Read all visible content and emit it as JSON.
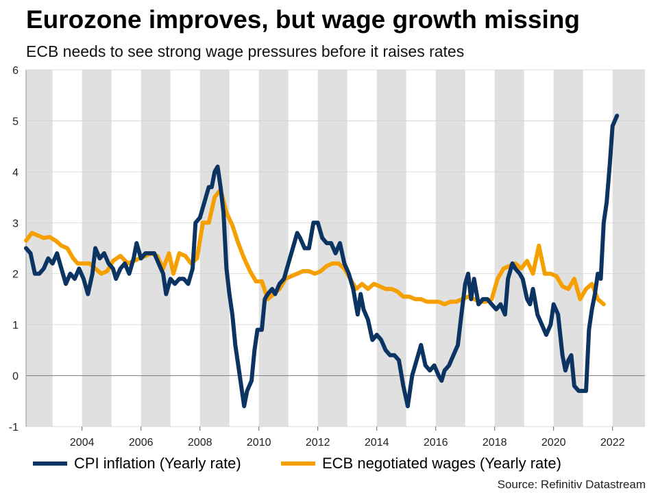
{
  "header": {
    "title": "Eurozone improves, but wage growth missing",
    "subtitle": "ECB needs to see strong wage pressures before it raises rates"
  },
  "source": "Source: Refinitiv Datastream",
  "colors": {
    "cpi": "#0b3463",
    "wages": "#f5a000",
    "band": "#e0e0e0",
    "grid": "#d0d0d0",
    "zero_line": "#888888"
  },
  "chart_data": {
    "type": "line",
    "title": "Eurozone improves, but wage growth missing",
    "subtitle": "ECB needs to see strong wage pressures before it raises rates",
    "xlabel": "",
    "ylabel": "",
    "xlim": [
      2002.1,
      2023.1
    ],
    "ylim": [
      -1,
      6
    ],
    "x_ticks": [
      2004,
      2006,
      2008,
      2010,
      2012,
      2014,
      2016,
      2018,
      2020,
      2022
    ],
    "y_ticks": [
      -1,
      0,
      1,
      2,
      3,
      4,
      5,
      6
    ],
    "shaded_years": [
      [
        2002.1,
        2003.0
      ],
      [
        2004.0,
        2005.0
      ],
      [
        2006.0,
        2007.0
      ],
      [
        2008.0,
        2009.0
      ],
      [
        2010.0,
        2011.0
      ],
      [
        2012.0,
        2013.0
      ],
      [
        2014.0,
        2015.0
      ],
      [
        2016.0,
        2017.0
      ],
      [
        2018.0,
        2019.0
      ],
      [
        2020.0,
        2021.0
      ],
      [
        2022.0,
        2023.1
      ]
    ],
    "legend_position": "bottom",
    "series": [
      {
        "name": "CPI inflation (Yearly rate)",
        "color": "#0b3463",
        "points": [
          [
            2002.1,
            2.5
          ],
          [
            2002.25,
            2.4
          ],
          [
            2002.4,
            2.0
          ],
          [
            2002.55,
            2.0
          ],
          [
            2002.7,
            2.1
          ],
          [
            2002.85,
            2.3
          ],
          [
            2003.0,
            2.2
          ],
          [
            2003.15,
            2.4
          ],
          [
            2003.3,
            2.1
          ],
          [
            2003.45,
            1.8
          ],
          [
            2003.6,
            2.0
          ],
          [
            2003.75,
            1.9
          ],
          [
            2003.9,
            2.1
          ],
          [
            2004.05,
            1.9
          ],
          [
            2004.2,
            1.6
          ],
          [
            2004.35,
            2.0
          ],
          [
            2004.45,
            2.5
          ],
          [
            2004.6,
            2.3
          ],
          [
            2004.75,
            2.4
          ],
          [
            2004.9,
            2.2
          ],
          [
            2005.05,
            2.1
          ],
          [
            2005.15,
            1.9
          ],
          [
            2005.3,
            2.1
          ],
          [
            2005.45,
            2.2
          ],
          [
            2005.6,
            2.0
          ],
          [
            2005.75,
            2.3
          ],
          [
            2005.85,
            2.6
          ],
          [
            2006.0,
            2.3
          ],
          [
            2006.15,
            2.4
          ],
          [
            2006.3,
            2.4
          ],
          [
            2006.45,
            2.4
          ],
          [
            2006.6,
            2.2
          ],
          [
            2006.75,
            2.0
          ],
          [
            2006.85,
            1.6
          ],
          [
            2007.0,
            1.9
          ],
          [
            2007.15,
            1.8
          ],
          [
            2007.3,
            1.9
          ],
          [
            2007.45,
            1.9
          ],
          [
            2007.6,
            1.8
          ],
          [
            2007.75,
            2.1
          ],
          [
            2007.85,
            3.0
          ],
          [
            2008.0,
            3.1
          ],
          [
            2008.15,
            3.4
          ],
          [
            2008.3,
            3.7
          ],
          [
            2008.4,
            3.7
          ],
          [
            2008.5,
            4.0
          ],
          [
            2008.6,
            4.1
          ],
          [
            2008.7,
            3.7
          ],
          [
            2008.8,
            3.2
          ],
          [
            2008.9,
            2.1
          ],
          [
            2009.0,
            1.6
          ],
          [
            2009.1,
            1.2
          ],
          [
            2009.2,
            0.6
          ],
          [
            2009.35,
            0.0
          ],
          [
            2009.5,
            -0.6
          ],
          [
            2009.6,
            -0.3
          ],
          [
            2009.75,
            -0.1
          ],
          [
            2009.85,
            0.5
          ],
          [
            2009.95,
            0.9
          ],
          [
            2010.1,
            0.9
          ],
          [
            2010.2,
            1.5
          ],
          [
            2010.3,
            1.6
          ],
          [
            2010.45,
            1.7
          ],
          [
            2010.55,
            1.6
          ],
          [
            2010.7,
            1.8
          ],
          [
            2010.85,
            1.9
          ],
          [
            2011.0,
            2.2
          ],
          [
            2011.15,
            2.5
          ],
          [
            2011.3,
            2.8
          ],
          [
            2011.4,
            2.7
          ],
          [
            2011.55,
            2.5
          ],
          [
            2011.7,
            2.5
          ],
          [
            2011.85,
            3.0
          ],
          [
            2012.0,
            3.0
          ],
          [
            2012.15,
            2.7
          ],
          [
            2012.3,
            2.6
          ],
          [
            2012.45,
            2.6
          ],
          [
            2012.6,
            2.4
          ],
          [
            2012.75,
            2.6
          ],
          [
            2012.9,
            2.2
          ],
          [
            2013.05,
            2.0
          ],
          [
            2013.2,
            1.7
          ],
          [
            2013.35,
            1.2
          ],
          [
            2013.45,
            1.6
          ],
          [
            2013.55,
            1.3
          ],
          [
            2013.7,
            1.1
          ],
          [
            2013.85,
            0.7
          ],
          [
            2014.0,
            0.8
          ],
          [
            2014.15,
            0.7
          ],
          [
            2014.3,
            0.5
          ],
          [
            2014.45,
            0.4
          ],
          [
            2014.6,
            0.4
          ],
          [
            2014.75,
            0.3
          ],
          [
            2014.9,
            -0.2
          ],
          [
            2015.05,
            -0.6
          ],
          [
            2015.2,
            0.0
          ],
          [
            2015.35,
            0.3
          ],
          [
            2015.5,
            0.6
          ],
          [
            2015.65,
            0.2
          ],
          [
            2015.8,
            0.1
          ],
          [
            2015.95,
            0.2
          ],
          [
            2016.1,
            0.0
          ],
          [
            2016.2,
            -0.1
          ],
          [
            2016.3,
            0.1
          ],
          [
            2016.45,
            0.2
          ],
          [
            2016.6,
            0.4
          ],
          [
            2016.75,
            0.6
          ],
          [
            2016.85,
            1.1
          ],
          [
            2017.0,
            1.8
          ],
          [
            2017.1,
            2.0
          ],
          [
            2017.2,
            1.5
          ],
          [
            2017.3,
            1.9
          ],
          [
            2017.45,
            1.4
          ],
          [
            2017.6,
            1.5
          ],
          [
            2017.75,
            1.5
          ],
          [
            2017.9,
            1.4
          ],
          [
            2018.05,
            1.3
          ],
          [
            2018.2,
            1.4
          ],
          [
            2018.35,
            1.2
          ],
          [
            2018.45,
            1.9
          ],
          [
            2018.6,
            2.2
          ],
          [
            2018.7,
            2.1
          ],
          [
            2018.85,
            2.0
          ],
          [
            2018.95,
            1.9
          ],
          [
            2019.1,
            1.5
          ],
          [
            2019.2,
            1.4
          ],
          [
            2019.3,
            1.7
          ],
          [
            2019.45,
            1.2
          ],
          [
            2019.6,
            1.0
          ],
          [
            2019.75,
            0.8
          ],
          [
            2019.9,
            1.0
          ],
          [
            2020.0,
            1.4
          ],
          [
            2020.15,
            1.2
          ],
          [
            2020.3,
            0.4
          ],
          [
            2020.4,
            0.1
          ],
          [
            2020.5,
            0.3
          ],
          [
            2020.6,
            0.4
          ],
          [
            2020.7,
            -0.2
          ],
          [
            2020.85,
            -0.3
          ],
          [
            2021.0,
            -0.3
          ],
          [
            2021.1,
            -0.3
          ],
          [
            2021.2,
            0.9
          ],
          [
            2021.3,
            1.3
          ],
          [
            2021.4,
            1.6
          ],
          [
            2021.5,
            2.0
          ],
          [
            2021.6,
            1.9
          ],
          [
            2021.7,
            3.0
          ],
          [
            2021.8,
            3.4
          ],
          [
            2021.9,
            4.1
          ],
          [
            2022.0,
            4.9
          ],
          [
            2022.15,
            5.1
          ]
        ]
      },
      {
        "name": "ECB negotiated wages (Yearly rate)",
        "color": "#f5a000",
        "points": [
          [
            2002.1,
            2.65
          ],
          [
            2002.3,
            2.8
          ],
          [
            2002.5,
            2.75
          ],
          [
            2002.7,
            2.7
          ],
          [
            2002.9,
            2.72
          ],
          [
            2003.1,
            2.65
          ],
          [
            2003.3,
            2.55
          ],
          [
            2003.5,
            2.5
          ],
          [
            2003.7,
            2.3
          ],
          [
            2003.85,
            2.2
          ],
          [
            2004.05,
            2.2
          ],
          [
            2004.25,
            2.2
          ],
          [
            2004.45,
            2.1
          ],
          [
            2004.65,
            2.0
          ],
          [
            2004.85,
            2.05
          ],
          [
            2005.05,
            2.25
          ],
          [
            2005.3,
            2.35
          ],
          [
            2005.55,
            2.2
          ],
          [
            2005.75,
            2.25
          ],
          [
            2005.95,
            2.3
          ],
          [
            2006.15,
            2.35
          ],
          [
            2006.35,
            2.4
          ],
          [
            2006.55,
            2.35
          ],
          [
            2006.75,
            2.1
          ],
          [
            2006.95,
            2.4
          ],
          [
            2007.1,
            2.0
          ],
          [
            2007.3,
            2.4
          ],
          [
            2007.5,
            2.35
          ],
          [
            2007.7,
            2.2
          ],
          [
            2007.9,
            2.3
          ],
          [
            2008.1,
            3.0
          ],
          [
            2008.3,
            3.0
          ],
          [
            2008.5,
            3.5
          ],
          [
            2008.7,
            3.65
          ],
          [
            2008.9,
            3.2
          ],
          [
            2009.1,
            2.95
          ],
          [
            2009.3,
            2.6
          ],
          [
            2009.5,
            2.3
          ],
          [
            2009.7,
            2.05
          ],
          [
            2009.9,
            1.85
          ],
          [
            2010.1,
            1.85
          ],
          [
            2010.3,
            1.5
          ],
          [
            2010.5,
            1.6
          ],
          [
            2010.7,
            1.7
          ],
          [
            2010.9,
            1.9
          ],
          [
            2011.1,
            1.95
          ],
          [
            2011.3,
            2.0
          ],
          [
            2011.5,
            2.05
          ],
          [
            2011.7,
            2.05
          ],
          [
            2011.9,
            2.0
          ],
          [
            2012.1,
            2.05
          ],
          [
            2012.3,
            2.15
          ],
          [
            2012.5,
            2.2
          ],
          [
            2012.7,
            2.2
          ],
          [
            2012.9,
            2.1
          ],
          [
            2013.1,
            1.9
          ],
          [
            2013.3,
            1.7
          ],
          [
            2013.5,
            1.8
          ],
          [
            2013.7,
            1.7
          ],
          [
            2013.9,
            1.8
          ],
          [
            2014.1,
            1.75
          ],
          [
            2014.3,
            1.7
          ],
          [
            2014.5,
            1.7
          ],
          [
            2014.7,
            1.65
          ],
          [
            2014.9,
            1.55
          ],
          [
            2015.1,
            1.55
          ],
          [
            2015.3,
            1.5
          ],
          [
            2015.5,
            1.5
          ],
          [
            2015.7,
            1.45
          ],
          [
            2015.9,
            1.45
          ],
          [
            2016.1,
            1.45
          ],
          [
            2016.3,
            1.4
          ],
          [
            2016.5,
            1.45
          ],
          [
            2016.7,
            1.45
          ],
          [
            2016.9,
            1.5
          ],
          [
            2017.1,
            1.55
          ],
          [
            2017.3,
            1.5
          ],
          [
            2017.5,
            1.45
          ],
          [
            2017.7,
            1.45
          ],
          [
            2017.9,
            1.5
          ],
          [
            2018.1,
            1.9
          ],
          [
            2018.3,
            2.1
          ],
          [
            2018.5,
            2.15
          ],
          [
            2018.7,
            2.2
          ],
          [
            2018.9,
            2.1
          ],
          [
            2019.1,
            2.25
          ],
          [
            2019.3,
            2.0
          ],
          [
            2019.5,
            2.55
          ],
          [
            2019.7,
            2.0
          ],
          [
            2019.9,
            2.0
          ],
          [
            2020.1,
            1.95
          ],
          [
            2020.3,
            1.75
          ],
          [
            2020.5,
            1.7
          ],
          [
            2020.7,
            1.9
          ],
          [
            2020.9,
            1.5
          ],
          [
            2021.1,
            1.7
          ],
          [
            2021.3,
            1.8
          ],
          [
            2021.5,
            1.5
          ],
          [
            2021.7,
            1.4
          ]
        ]
      }
    ]
  }
}
